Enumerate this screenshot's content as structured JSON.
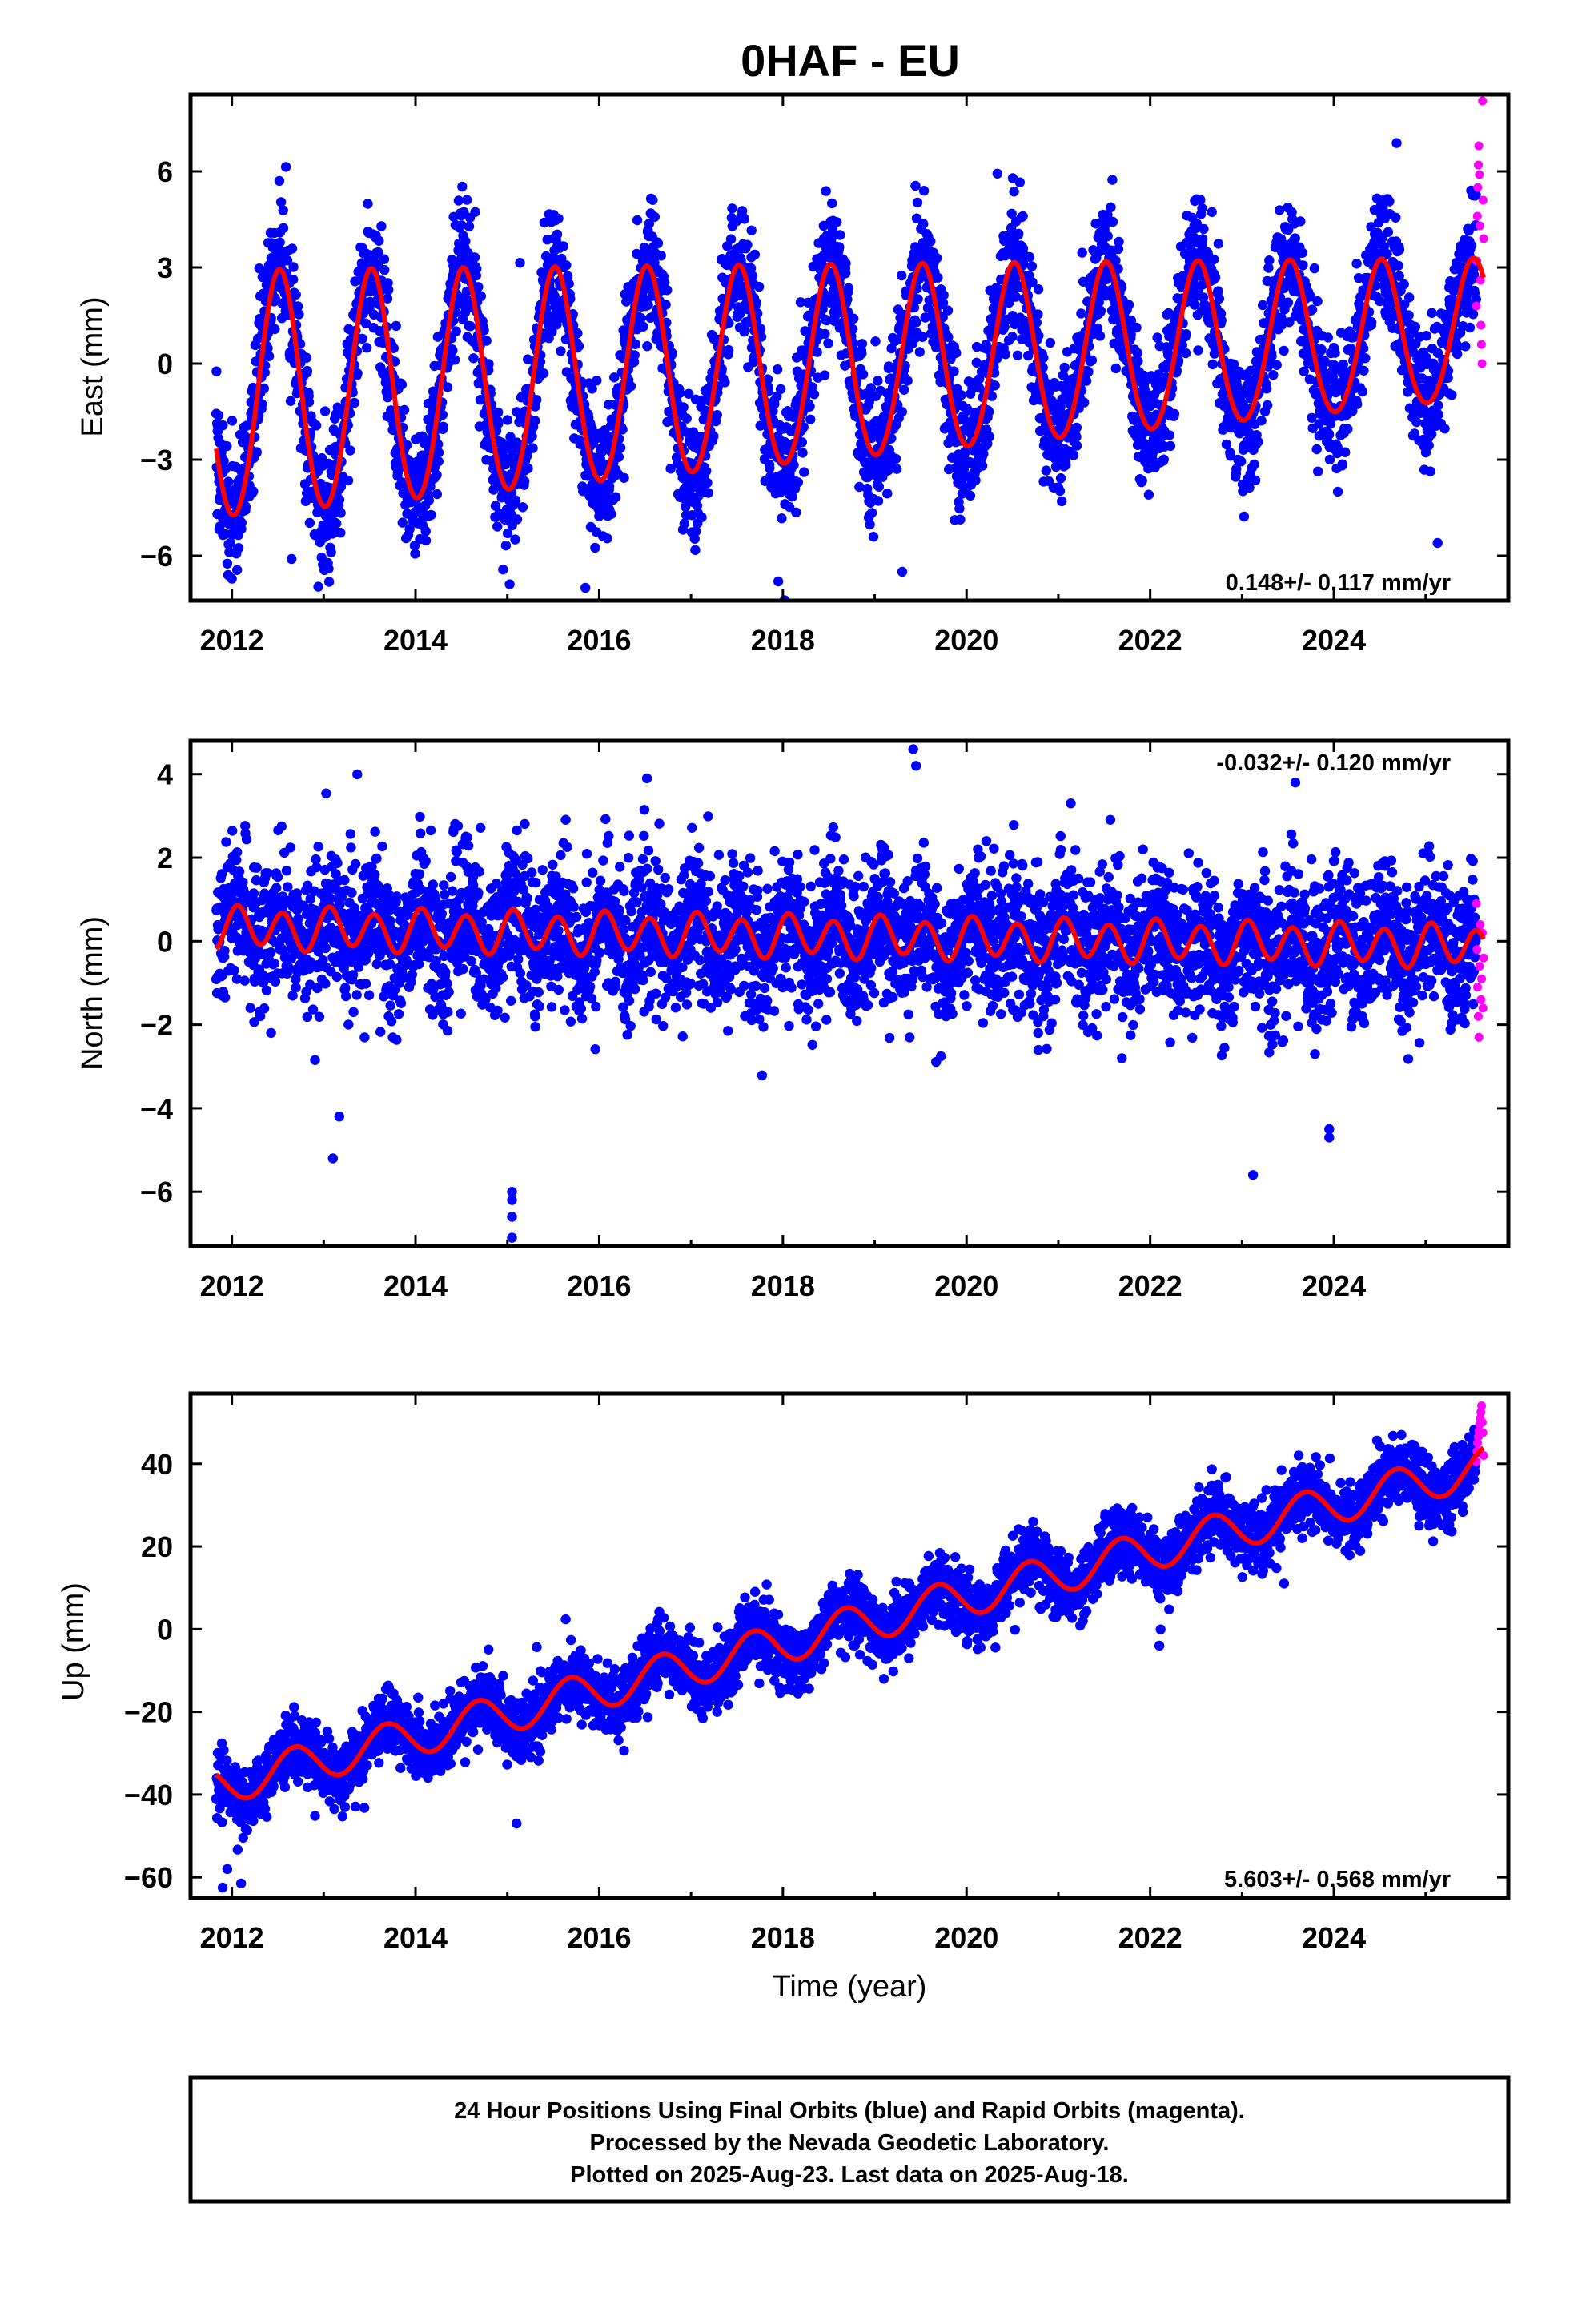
{
  "title": "0HAF - EU",
  "note": {
    "lines": [
      "24 Hour Positions Using Final Orbits (blue) and Rapid Orbits (magenta).",
      "Processed by the Nevada Geodetic Laboratory.",
      "Plotted on 2025-Aug-23. Last data on 2025-Aug-18."
    ]
  },
  "colors": {
    "final_orbits": "#0000ff",
    "rapid_orbits": "#ff00ff",
    "model_fit": "#ff0000",
    "frame": "#000000"
  },
  "chart_data": [
    {
      "type": "scatter",
      "ylabel": "East (mm)",
      "xlabel": "",
      "xlim": [
        2011.55,
        2025.9
      ],
      "ylim": [
        -7.4,
        8.4
      ],
      "xticks": [
        2012,
        2014,
        2016,
        2018,
        2020,
        2022,
        2024
      ],
      "xtick_labels": [
        "2012",
        "2014",
        "2016",
        "2018",
        "2020",
        "2022",
        "2024"
      ],
      "yticks": [
        -6,
        -3,
        0,
        3,
        6
      ],
      "ytick_labels": [
        "−6",
        "−3",
        "0",
        "3",
        "6"
      ],
      "rate_label": "0.148+/- 0.117 mm/yr",
      "rate_position": "bottom-right",
      "data_range": {
        "start": 2011.83,
        "end": 2025.63,
        "rapid_start": 2025.55
      },
      "model": {
        "offset": -0.07,
        "trend_mm_per_yr": 0.148,
        "annual_cos": -3.0,
        "annual_sin": -0.35,
        "amplitude_growth_per_yr": -0.04,
        "semiannual_cos": 0.15,
        "semiannual_sin": 0.05,
        "noise_sd": 1.0
      },
      "rapid_values": [
        1.8,
        3.2,
        4.6,
        5.5,
        6.2,
        6.8,
        5.9,
        4.3,
        2.6,
        1.2,
        0.6,
        0.0,
        8.2,
        5.1,
        3.9
      ],
      "outliers": [
        [
          2015.85,
          -7.0
        ],
        [
          2017.95,
          -6.8
        ],
        [
          2019.3,
          -6.5
        ],
        [
          2012.65,
          -6.1
        ],
        [
          2025.13,
          -5.6
        ]
      ]
    },
    {
      "type": "scatter",
      "ylabel": "North (mm)",
      "xlabel": "",
      "xlim": [
        2011.55,
        2025.9
      ],
      "ylim": [
        -7.3,
        4.8
      ],
      "xticks": [
        2012,
        2014,
        2016,
        2018,
        2020,
        2022,
        2024
      ],
      "xtick_labels": [
        "2012",
        "2014",
        "2016",
        "2018",
        "2020",
        "2022",
        "2024"
      ],
      "yticks": [
        -6,
        -4,
        -2,
        0,
        2,
        4
      ],
      "ytick_labels": [
        "−6",
        "−4",
        "−2",
        "0",
        "2",
        "4"
      ],
      "rate_label": "-0.032+/- 0.120 mm/yr",
      "rate_position": "top-right",
      "data_range": {
        "start": 2011.83,
        "end": 2025.63,
        "rapid_start": 2025.55
      },
      "model": {
        "offset": 0.1,
        "trend_mm_per_yr": -0.032,
        "annual_cos": 0.05,
        "annual_sin": 0.1,
        "amplitude_growth_per_yr": 0.0,
        "semiannual_cos": 0.35,
        "semiannual_sin": 0.3,
        "noise_sd": 0.85
      },
      "rapid_values": [
        0.9,
        -0.2,
        -1.1,
        -1.8,
        -2.3,
        -0.6,
        0.4,
        -1.4,
        -0.9,
        0.2,
        -1.6,
        -0.4
      ],
      "outliers": [
        [
          2015.05,
          -7.1
        ],
        [
          2015.05,
          -6.6
        ],
        [
          2015.05,
          -6.2
        ],
        [
          2015.05,
          -6.0
        ],
        [
          2013.1,
          -5.2
        ],
        [
          2023.12,
          -5.6
        ],
        [
          2023.95,
          -4.7
        ],
        [
          2023.95,
          -4.5
        ],
        [
          2019.42,
          4.6
        ],
        [
          2019.45,
          4.2
        ],
        [
          2016.52,
          3.9
        ],
        [
          2023.58,
          3.8
        ],
        [
          2013.17,
          -4.2
        ]
      ]
    },
    {
      "type": "scatter",
      "ylabel": "Up (mm)",
      "xlabel": "Time (year)",
      "xlim": [
        2011.55,
        2025.9
      ],
      "ylim": [
        -65,
        57
      ],
      "xticks": [
        2012,
        2014,
        2016,
        2018,
        2020,
        2022,
        2024
      ],
      "xtick_labels": [
        "2012",
        "2014",
        "2016",
        "2018",
        "2020",
        "2022",
        "2024"
      ],
      "yticks": [
        -60,
        -40,
        -20,
        0,
        20,
        40
      ],
      "ytick_labels": [
        "−60",
        "−40",
        "−20",
        "0",
        "20",
        "40"
      ],
      "rate_label": "5.603+/- 0.568 mm/yr",
      "rate_position": "bottom-right",
      "data_range": {
        "start": 2011.83,
        "end": 2025.63,
        "rapid_start": 2025.55
      },
      "model": {
        "offset": 0.5,
        "ref_year": 2018.7,
        "trend_mm_per_yr": 5.603,
        "annual_cos": -2.0,
        "annual_sin": -4.3,
        "amplitude_growth_per_yr": 0.0,
        "semiannual_cos": 0.0,
        "semiannual_sin": 0.0,
        "noise_sd": 3.8
      },
      "rapid_values": [
        40.5,
        43.0,
        45.0,
        46.5,
        48.0,
        49.5,
        51.0,
        52.5,
        54.0,
        50.0,
        47.5,
        42.0
      ],
      "outliers": [
        [
          2011.9,
          -62.5
        ],
        [
          2012.1,
          -61.5
        ],
        [
          2015.1,
          -47.0
        ],
        [
          2011.95,
          -58.0
        ],
        [
          2022.1,
          -4.0
        ],
        [
          2019.1,
          -12.0
        ]
      ]
    }
  ]
}
